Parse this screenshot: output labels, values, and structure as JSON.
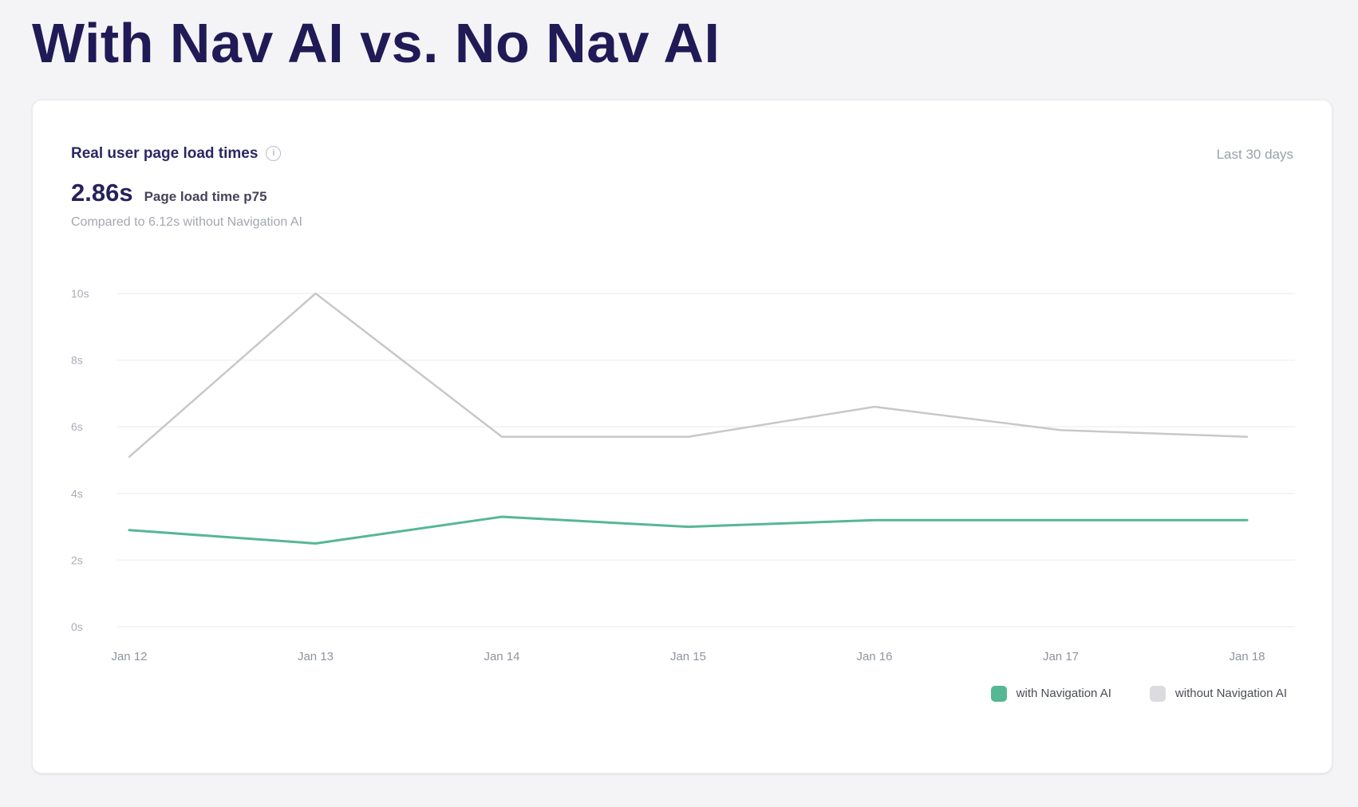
{
  "page": {
    "title": "With Nav AI vs. No Nav AI",
    "background_color": "#f4f4f6",
    "title_color": "#201a56"
  },
  "card": {
    "title": "Real user page load times",
    "info_icon": "info-icon",
    "time_range": "Last 30 days",
    "metric_value": "2.86s",
    "metric_label": "Page load time p75",
    "comparison": "Compared to 6.12s without Navigation AI"
  },
  "chart_data": {
    "type": "line",
    "title": "Real user page load times",
    "categories": [
      "Jan 12",
      "Jan 13",
      "Jan 14",
      "Jan 15",
      "Jan 16",
      "Jan 17",
      "Jan 18"
    ],
    "series": [
      {
        "name": "with Navigation AI",
        "color": "#56b794",
        "swatch_color": "#56b794",
        "stroke_width": 3,
        "values": [
          2.9,
          2.5,
          3.3,
          3.0,
          3.2,
          3.2,
          3.2
        ]
      },
      {
        "name": "without Navigation AI",
        "color": "#c8c8cb",
        "swatch_color": "#dcdce0",
        "stroke_width": 2.5,
        "values": [
          5.1,
          10.0,
          5.7,
          5.7,
          6.6,
          5.9,
          5.7
        ]
      }
    ],
    "xlabel": "",
    "ylabel": "",
    "ylim": [
      0,
      10
    ],
    "yticks": [
      {
        "value": 0,
        "label": "0s"
      },
      {
        "value": 2,
        "label": "2s"
      },
      {
        "value": 4,
        "label": "4s"
      },
      {
        "value": 6,
        "label": "6s"
      },
      {
        "value": 8,
        "label": "8s"
      },
      {
        "value": 10,
        "label": "10s"
      }
    ],
    "grid": true,
    "gridline_color": "#f1f1f4",
    "legend_position": "bottom-right"
  }
}
